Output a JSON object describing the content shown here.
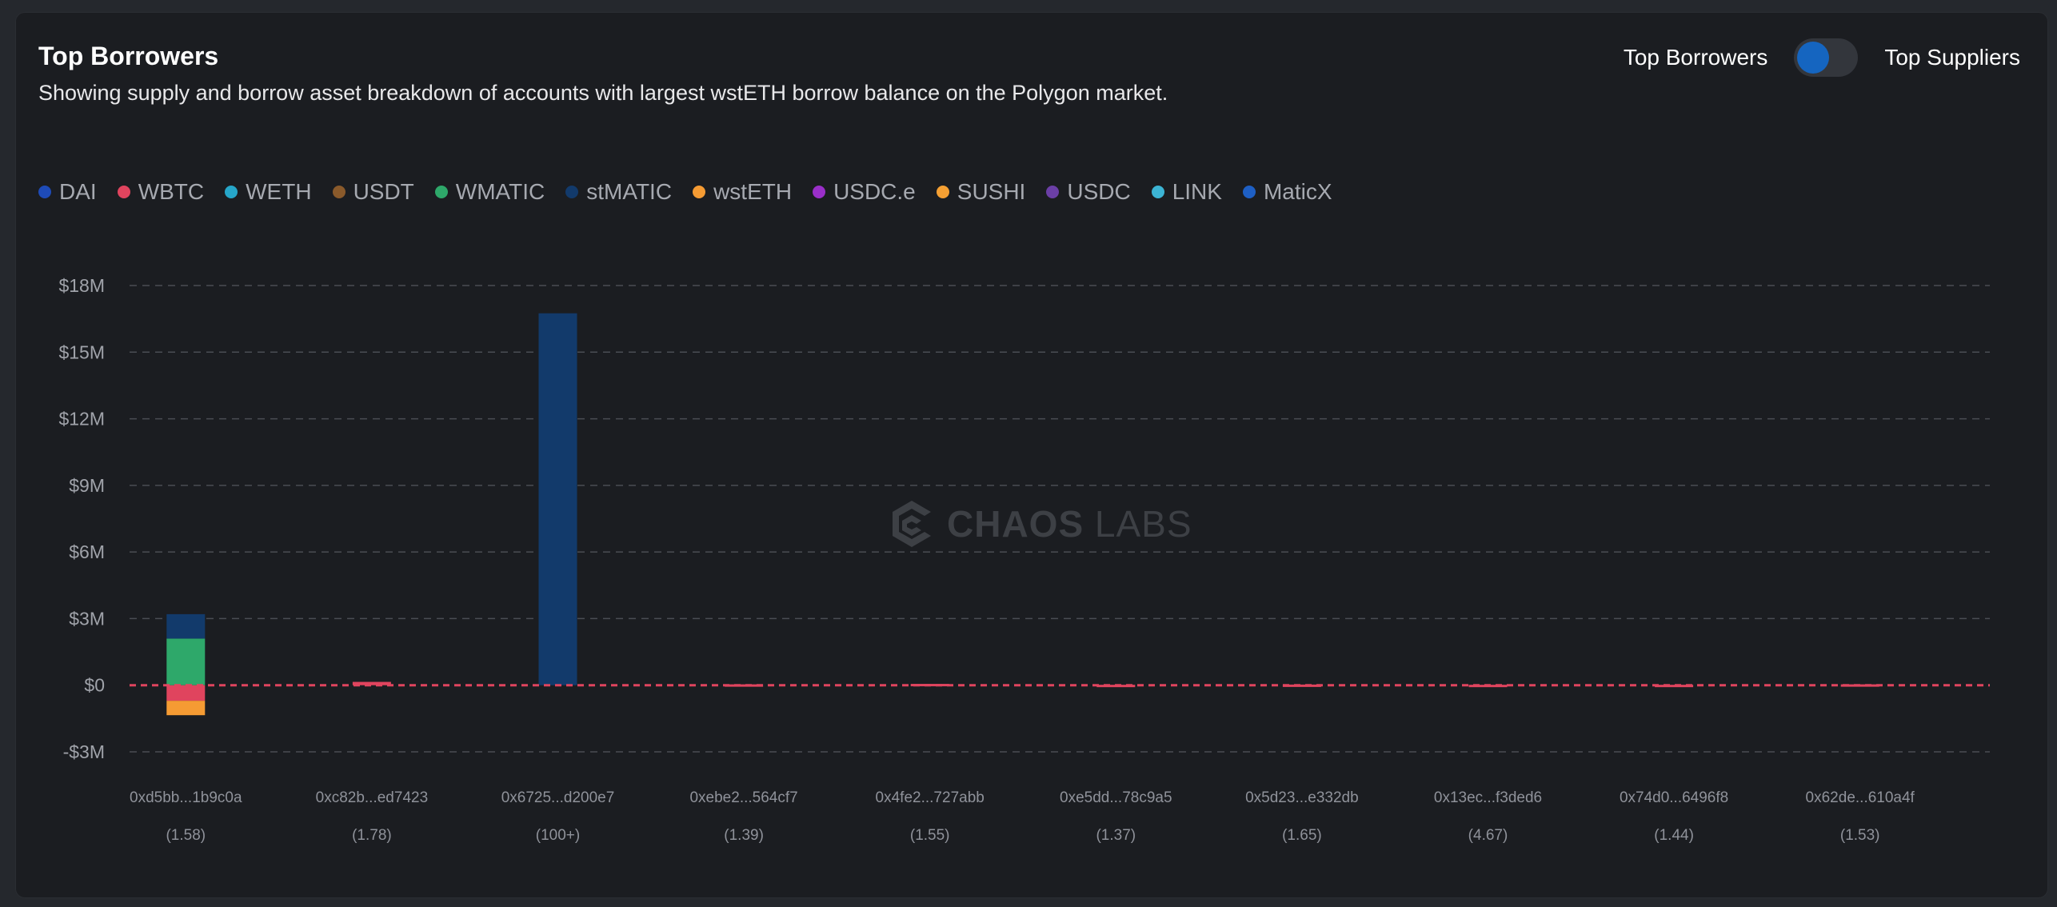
{
  "header": {
    "title": "Top Borrowers",
    "subtitle": "Showing supply and borrow asset breakdown of accounts with largest wstETH borrow balance on the Polygon market."
  },
  "toggle": {
    "left_label": "Top Borrowers",
    "right_label": "Top Suppliers",
    "selected": "Top Borrowers",
    "knob_color": "#1565c0"
  },
  "watermark": {
    "brand_bold": "CHAOS",
    "brand_light": "LABS"
  },
  "legend": [
    {
      "label": "DAI",
      "color": "#1e4bb8"
    },
    {
      "label": "WBTC",
      "color": "#e0445e"
    },
    {
      "label": "WETH",
      "color": "#26a6c9"
    },
    {
      "label": "USDT",
      "color": "#8a5a2b"
    },
    {
      "label": "WMATIC",
      "color": "#2ea86a"
    },
    {
      "label": "stMATIC",
      "color": "#123a6b"
    },
    {
      "label": "wstETH",
      "color": "#f59b33"
    },
    {
      "label": "USDC.e",
      "color": "#9a2fc9"
    },
    {
      "label": "SUSHI",
      "color": "#f5a033"
    },
    {
      "label": "USDC",
      "color": "#6b3fa6"
    },
    {
      "label": "LINK",
      "color": "#3cb4d4"
    },
    {
      "label": "MaticX",
      "color": "#1e5fc4"
    }
  ],
  "chart_data": {
    "type": "bar",
    "stacked": true,
    "categories": [
      "0xd5bb...1b9c0a",
      "0xc82b...ed7423",
      "0x6725...d200e7",
      "0xebe2...564cf7",
      "0x4fe2...727abb",
      "0xe5dd...78c9a5",
      "0x5d23...e332db",
      "0x13ec...f3ded6",
      "0x74d0...6496f8",
      "0x62de...610a4f"
    ],
    "sublabels": [
      "(1.58)",
      "(1.78)",
      "(100+)",
      "(1.39)",
      "(1.55)",
      "(1.37)",
      "(1.65)",
      "(4.67)",
      "(1.44)",
      "(1.53)"
    ],
    "yticks": [
      {
        "value": 18000000,
        "label": "$18M"
      },
      {
        "value": 15000000,
        "label": "$15M"
      },
      {
        "value": 12000000,
        "label": "$12M"
      },
      {
        "value": 9000000,
        "label": "$9M"
      },
      {
        "value": 6000000,
        "label": "$6M"
      },
      {
        "value": 3000000,
        "label": "$3M"
      },
      {
        "value": 0,
        "label": "$0"
      },
      {
        "value": -3000000,
        "label": "-$3M"
      }
    ],
    "ylim": [
      -3000000,
      18000000
    ],
    "grid": true,
    "zero_line_color": "#e0445e",
    "grid_color": "#4a4d53",
    "series": [
      {
        "name": "WMATIC",
        "color": "#2ea86a",
        "values": [
          2100000,
          0,
          0,
          0,
          0,
          0,
          0,
          0,
          0,
          0
        ]
      },
      {
        "name": "stMATIC",
        "color": "#123a6b",
        "values": [
          1100000,
          0,
          16750000,
          0,
          0,
          0,
          0,
          0,
          0,
          0
        ]
      },
      {
        "name": "WBTC",
        "color": "#e0445e",
        "values": [
          -700000,
          150000,
          0,
          40000,
          60000,
          20000,
          30000,
          20000,
          20000,
          40000
        ]
      },
      {
        "name": "wstETH",
        "color": "#f59b33",
        "values": [
          -650000,
          0,
          0,
          0,
          0,
          0,
          0,
          0,
          0,
          0
        ]
      }
    ]
  }
}
